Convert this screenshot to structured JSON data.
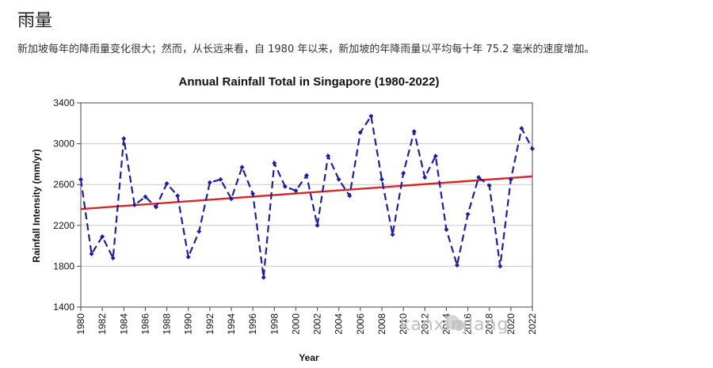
{
  "article": {
    "heading": "雨量",
    "description": "新加坡每年的降雨量变化很大；然而，从长远来看，自 1980 年以来，新加坡的年降雨量以平均每十年 75.2 毫米的速度增加。"
  },
  "watermark": {
    "text": "kanxinjiang"
  },
  "chart_data": {
    "type": "line",
    "title": "Annual Rainfall Total in Singapore (1980-2022)",
    "xlabel": "Year",
    "ylabel": "Rainfall Intensity (mm/yr)",
    "ylim": [
      1400,
      3400
    ],
    "xlim": [
      1980,
      2022
    ],
    "yticks": [
      1400,
      1800,
      2200,
      2600,
      3000,
      3400
    ],
    "xticks": [
      1980,
      1982,
      1984,
      1986,
      1988,
      1990,
      1992,
      1994,
      1996,
      1998,
      2000,
      2002,
      2004,
      2006,
      2008,
      2010,
      2012,
      2014,
      2016,
      2018,
      2020,
      2022
    ],
    "grid": "horizontal",
    "series": [
      {
        "style": "dashed line with diamond markers",
        "color": "#1f1f9e",
        "x": [
          1980,
          1981,
          1982,
          1983,
          1984,
          1985,
          1986,
          1987,
          1988,
          1989,
          1990,
          1991,
          1992,
          1993,
          1994,
          1995,
          1996,
          1997,
          1998,
          1999,
          2000,
          2001,
          2002,
          2003,
          2004,
          2005,
          2006,
          2007,
          2008,
          2009,
          2010,
          2011,
          2012,
          2013,
          2014,
          2015,
          2016,
          2017,
          2018,
          2019,
          2020,
          2021,
          2022
        ],
        "values": [
          2650,
          1920,
          2090,
          1880,
          3050,
          2400,
          2480,
          2380,
          2610,
          2490,
          1890,
          2140,
          2620,
          2650,
          2460,
          2770,
          2510,
          1690,
          2810,
          2580,
          2540,
          2690,
          2200,
          2880,
          2650,
          2490,
          3110,
          3270,
          2650,
          2110,
          2710,
          3120,
          2670,
          2880,
          2160,
          1810,
          2310,
          2670,
          2590,
          1800,
          2650,
          3150,
          2950
        ]
      },
      {
        "style": "solid trend line",
        "color": "#d62728",
        "x": [
          1980,
          2022
        ],
        "values": [
          2360,
          2680
        ]
      }
    ]
  }
}
